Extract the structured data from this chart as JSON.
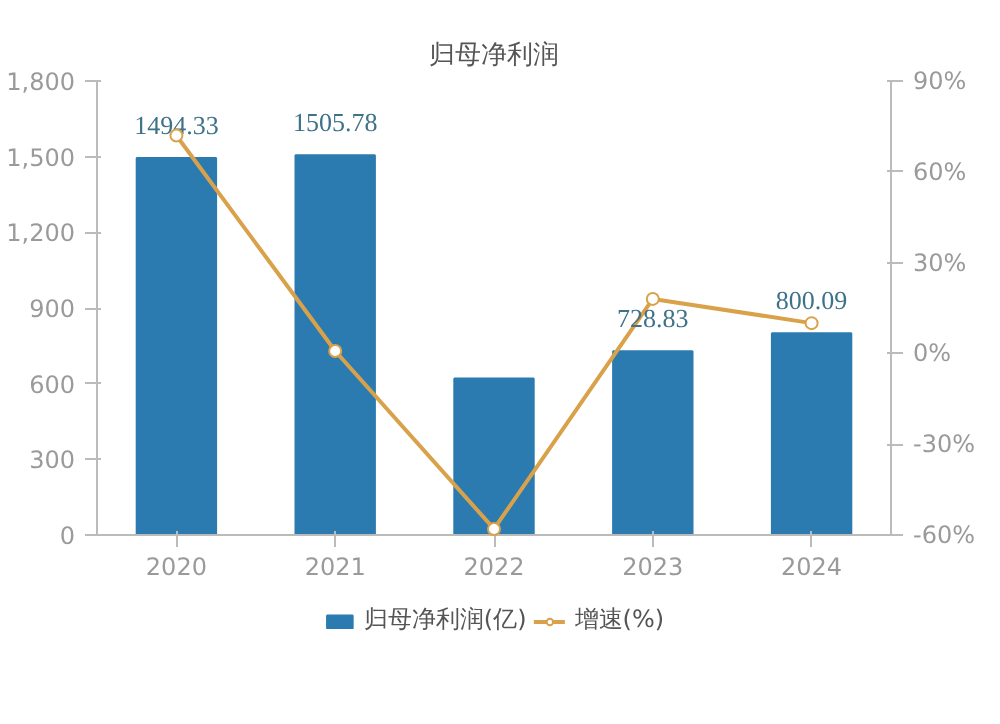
{
  "chart_data": {
    "type": "bar",
    "title": "归母净利润",
    "categories": [
      "2020",
      "2021",
      "2022",
      "2023",
      "2024"
    ],
    "series": [
      {
        "name": "归母净利润(亿)",
        "color": "#2b7bb0",
        "values": [
          1494.33,
          1505.78,
          620,
          728.83,
          800.09
        ],
        "value_labels": [
          "1494.33",
          "1505.78",
          null,
          "728.83",
          "800.09"
        ]
      },
      {
        "name": "增速(%)",
        "type": "line",
        "axis": "y2",
        "color": "#d9a24a",
        "values": [
          72,
          0.8,
          -58,
          18,
          10
        ]
      }
    ],
    "ylim": [
      0,
      1800
    ],
    "yticks": [
      {
        "value": 0,
        "label": "0"
      },
      {
        "value": 300,
        "label": "300"
      },
      {
        "value": 600,
        "label": "600"
      },
      {
        "value": 900,
        "label": "900"
      },
      {
        "value": 1200,
        "label": "1,200"
      },
      {
        "value": 1500,
        "label": "1,500"
      },
      {
        "value": 1800,
        "label": "1,800"
      }
    ],
    "y2lim": [
      -60,
      90
    ],
    "y2ticks": [
      {
        "value": -60,
        "label": "-60%"
      },
      {
        "value": -30,
        "label": "-30%"
      },
      {
        "value": 0,
        "label": "0%"
      },
      {
        "value": 30,
        "label": "30%"
      },
      {
        "value": 60,
        "label": "60%"
      },
      {
        "value": 90,
        "label": "90%"
      }
    ],
    "grid": false,
    "legend": "bottom",
    "marker": "circle",
    "line_style": "solid"
  }
}
